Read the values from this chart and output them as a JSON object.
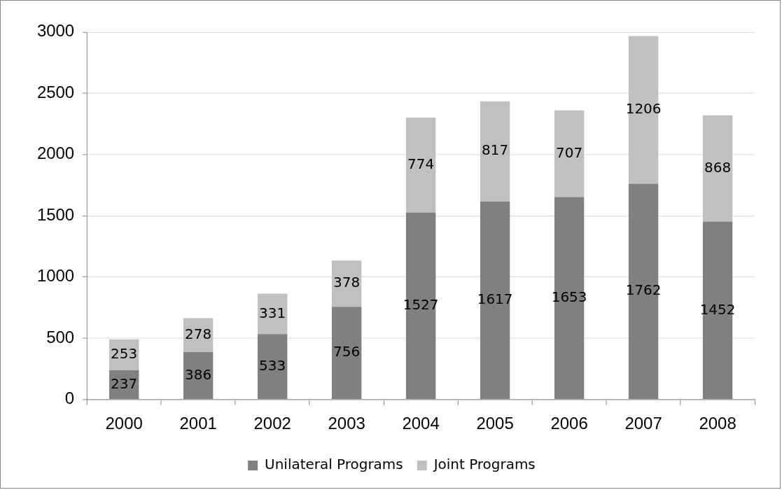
{
  "chart_data": {
    "type": "bar",
    "stacked": true,
    "categories": [
      "2000",
      "2001",
      "2002",
      "2003",
      "2004",
      "2005",
      "2006",
      "2007",
      "2008"
    ],
    "series": [
      {
        "name": "Unilateral Programs",
        "color": "#808080",
        "values": [
          237,
          386,
          533,
          756,
          1527,
          1617,
          1653,
          1762,
          1452
        ]
      },
      {
        "name": "Joint Programs",
        "color": "#c0c0c0",
        "values": [
          253,
          278,
          331,
          378,
          774,
          817,
          707,
          1206,
          868
        ]
      }
    ],
    "ylim": [
      0,
      3000
    ],
    "yticks": [
      0,
      500,
      1000,
      1500,
      2000,
      2500,
      3000
    ],
    "grid": "y",
    "legend": "bottom",
    "data_labels": true
  }
}
